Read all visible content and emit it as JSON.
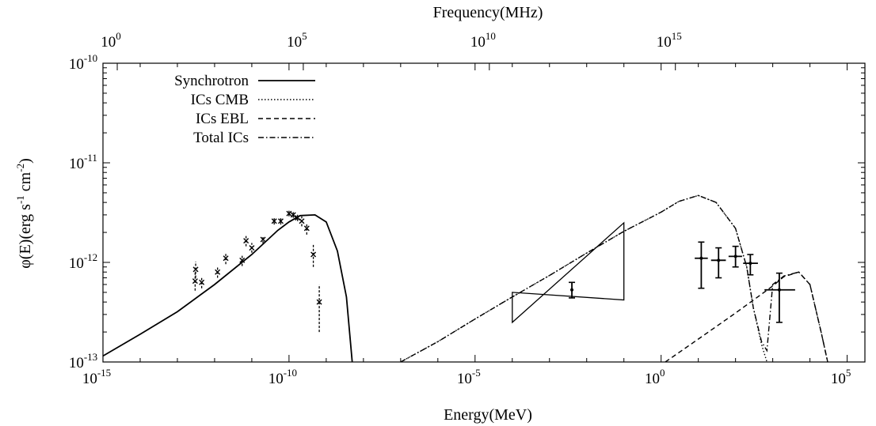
{
  "chart_data": {
    "type": "line",
    "xlabel": "Energy(MeV)",
    "x2label": "Frequency(MHz)",
    "ylabel_parts": [
      "φ(E)(erg s",
      "-1",
      " cm",
      "-2",
      ")"
    ],
    "xscale": "log",
    "yscale": "log",
    "xlim": [
      1e-15,
      300000.0
    ],
    "ylim": [
      1e-13,
      1e-10
    ],
    "x_ticks": [
      {
        "base": "10",
        "exp": "-15",
        "value": 1e-15
      },
      {
        "base": "10",
        "exp": "-10",
        "value": 1e-10
      },
      {
        "base": "10",
        "exp": "-5",
        "value": 1e-05
      },
      {
        "base": "10",
        "exp": "0",
        "value": 1
      },
      {
        "base": "10",
        "exp": "5",
        "value": 100000.0
      }
    ],
    "x2_ticks": [
      {
        "base": "10",
        "exp": "0",
        "value": 2.42e-15
      },
      {
        "base": "10",
        "exp": "5",
        "value": 2.42e-10
      },
      {
        "base": "10",
        "exp": "10",
        "value": 2.42e-05
      },
      {
        "base": "10",
        "exp": "15",
        "value": 2.42
      }
    ],
    "y_ticks": [
      {
        "base": "10",
        "exp": "-13",
        "value": 1e-13
      },
      {
        "base": "10",
        "exp": "-12",
        "value": 1e-12
      },
      {
        "base": "10",
        "exp": "-11",
        "value": 1e-11
      },
      {
        "base": "10",
        "exp": "-10",
        "value": 1e-10
      }
    ],
    "legend_position": "top-left",
    "series": [
      {
        "name": "Synchrotron",
        "dash": "solid",
        "x": [
          1e-15,
          1e-14,
          1e-13,
          1e-12,
          1e-11,
          5e-11,
          1e-10,
          2e-10,
          5e-10,
          1e-09,
          2e-09,
          3.5e-09,
          5e-09
        ],
        "y": [
          1.15e-13,
          1.9e-13,
          3.2e-13,
          6e-13,
          1.2e-12,
          2.1e-12,
          2.55e-12,
          2.95e-12,
          3e-12,
          2.55e-12,
          1.3e-12,
          4.5e-13,
          1e-13
        ]
      },
      {
        "name": "ICs CMB",
        "dash": "dotted",
        "x": [
          1e-07,
          1e-06,
          1e-05,
          0.0001,
          0.001,
          0.01,
          0.1,
          1,
          3,
          10,
          30,
          100,
          200,
          300,
          500,
          700
        ],
        "y": [
          1e-13,
          1.6e-13,
          2.7e-13,
          4.5e-13,
          7.4e-13,
          1.24e-12,
          2.05e-12,
          3.2e-12,
          4.1e-12,
          4.7e-12,
          4e-12,
          2.2e-12,
          9e-13,
          3.5e-13,
          1.5e-13,
          1e-13
        ]
      },
      {
        "name": "ICs EBL",
        "dash": "dashed",
        "x": [
          1.3,
          10,
          100,
          500,
          1000,
          2000,
          5000,
          10000,
          20000,
          30000
        ],
        "y": [
          1e-13,
          1.7e-13,
          3.1e-13,
          4.8e-13,
          5.8e-13,
          7.2e-13,
          8e-13,
          6e-13,
          2e-13,
          1e-13
        ]
      },
      {
        "name": "Total ICs",
        "dash": "dash-dot",
        "x": [
          1e-07,
          1e-06,
          1e-05,
          0.0001,
          0.001,
          0.01,
          0.1,
          1,
          3,
          10,
          30,
          100,
          200,
          300,
          500,
          700,
          1000,
          2000,
          5000,
          10000,
          20000,
          30000
        ],
        "y": [
          1e-13,
          1.6e-13,
          2.7e-13,
          4.5e-13,
          7.4e-13,
          1.24e-12,
          2.05e-12,
          3.2e-12,
          4.1e-12,
          4.7e-12,
          4e-12,
          2.2e-12,
          9e-13,
          3.5e-13,
          1.6e-13,
          1.3e-13,
          6e-13,
          7.3e-13,
          8e-13,
          6e-13,
          2e-13,
          1e-13
        ]
      }
    ],
    "data_points": [
      {
        "x": 3e-13,
        "y": 6.5e-13,
        "ylo": 5.2e-13,
        "yhi": 8.2e-13
      },
      {
        "x": 3.1e-13,
        "y": 8.5e-13,
        "ylo": 7e-13,
        "yhi": 1.02e-12
      },
      {
        "x": 4.5e-13,
        "y": 6.3e-13,
        "ylo": 5.5e-13,
        "yhi": 7.2e-13
      },
      {
        "x": 1.2e-12,
        "y": 8e-13,
        "ylo": 7e-13,
        "yhi": 9.2e-13
      },
      {
        "x": 2e-12,
        "y": 1.1e-12,
        "ylo": 9.6e-13,
        "yhi": 1.26e-12
      },
      {
        "x": 5.5e-12,
        "y": 1.05e-12,
        "ylo": 9.2e-13,
        "yhi": 1.18e-12
      },
      {
        "x": 7e-12,
        "y": 1.65e-12,
        "ylo": 1.45e-12,
        "yhi": 1.88e-12
      },
      {
        "x": 1e-11,
        "y": 1.4e-12,
        "ylo": 1.25e-12,
        "yhi": 1.57e-12
      },
      {
        "x": 2e-11,
        "y": 1.7e-12,
        "ylo": 1.55e-12,
        "yhi": 1.86e-12
      },
      {
        "x": 4e-11,
        "y": 2.6e-12,
        "ylo": 2.4e-12,
        "yhi": 2.8e-12
      },
      {
        "x": 6e-11,
        "y": 2.6e-12,
        "ylo": 2.4e-12,
        "yhi": 2.8e-12
      },
      {
        "x": 1e-10,
        "y": 3.1e-12,
        "ylo": 2.9e-12,
        "yhi": 3.3e-12
      },
      {
        "x": 1.3e-10,
        "y": 3e-12,
        "ylo": 2.8e-12,
        "yhi": 3.2e-12
      },
      {
        "x": 1.7e-10,
        "y": 2.8e-12,
        "ylo": 2.6e-12,
        "yhi": 3.1e-12
      },
      {
        "x": 2.2e-10,
        "y": 2.6e-12,
        "ylo": 2.3e-12,
        "yhi": 2.9e-12
      },
      {
        "x": 3e-10,
        "y": 2.2e-12,
        "ylo": 1.9e-12,
        "yhi": 2.5e-12
      },
      {
        "x": 4.5e-10,
        "y": 1.2e-12,
        "ylo": 9e-13,
        "yhi": 1.5e-12
      },
      {
        "x": 6.5e-10,
        "y": 4e-13,
        "ylo": 2e-13,
        "yhi": 6e-13
      }
    ],
    "gamma_points": [
      {
        "x": 0.004,
        "y": 5.3e-13,
        "ylo": 4.4e-13,
        "yhi": 6.3e-13,
        "xlo": 0.004,
        "xhi": 0.004
      },
      {
        "x": 12,
        "y": 1.1e-12,
        "ylo": 5.5e-13,
        "yhi": 1.6e-12,
        "xlo": 8,
        "xhi": 18
      },
      {
        "x": 35,
        "y": 1.05e-12,
        "ylo": 7e-13,
        "yhi": 1.4e-12,
        "xlo": 22,
        "xhi": 55
      },
      {
        "x": 100,
        "y": 1.15e-12,
        "ylo": 9e-13,
        "yhi": 1.45e-12,
        "xlo": 65,
        "xhi": 150
      },
      {
        "x": 250,
        "y": 9.8e-13,
        "ylo": 7.5e-13,
        "yhi": 1.2e-12,
        "xlo": 160,
        "xhi": 400
      },
      {
        "x": 1500,
        "y": 5.3e-13,
        "ylo": 2.5e-13,
        "yhi": 7.8e-13,
        "xlo": 600,
        "xhi": 4000
      }
    ],
    "bowtie": {
      "x": [
        0.0001,
        0.0001,
        0.1,
        0.1
      ],
      "y": [
        5e-13,
        2.5e-13,
        2.5e-12,
        4.2e-13
      ],
      "center": [
        0.004,
        5.3e-13
      ]
    }
  }
}
